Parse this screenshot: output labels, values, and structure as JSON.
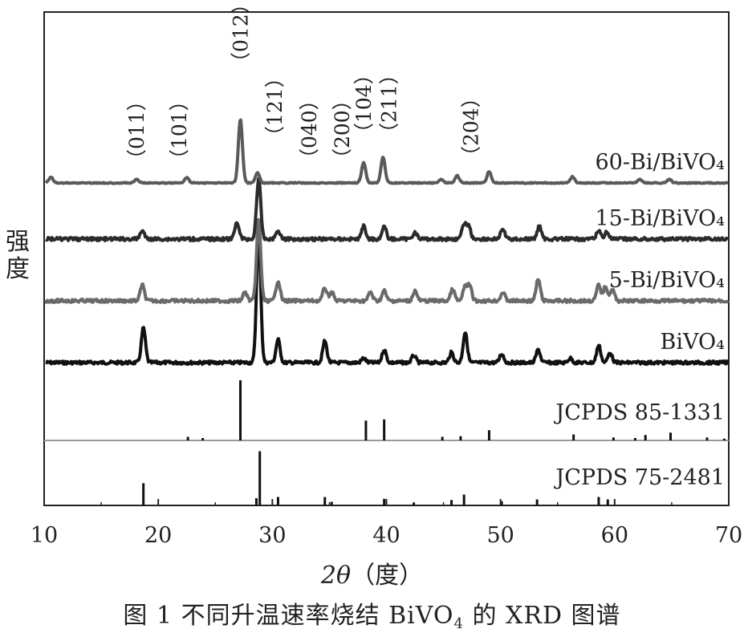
{
  "chart_data": {
    "type": "line",
    "xlabel_symbol": "2θ",
    "xlabel_unit": "（度）",
    "ylabel": "强度",
    "xlim": [
      10,
      70
    ],
    "xticks": [
      10,
      20,
      30,
      40,
      50,
      60,
      70
    ],
    "series": [
      {
        "name": "60-Bi/BiVO₄",
        "color": "#5a5a5a",
        "baseline": 1.0,
        "peaks": [
          [
            10.6,
            0.2
          ],
          [
            18.1,
            0.12
          ],
          [
            22.5,
            0.18
          ],
          [
            27.2,
            2.2
          ],
          [
            28.7,
            0.35
          ],
          [
            38.0,
            0.7
          ],
          [
            39.7,
            0.9
          ],
          [
            44.8,
            0.12
          ],
          [
            46.2,
            0.25
          ],
          [
            49.0,
            0.4
          ],
          [
            56.3,
            0.22
          ],
          [
            62.2,
            0.12
          ],
          [
            64.8,
            0.12
          ]
        ]
      },
      {
        "name": "15-Bi/BiVO₄",
        "color": "#2b2b2b",
        "baseline": 1.0,
        "peaks": [
          [
            18.6,
            0.3
          ],
          [
            26.9,
            0.6
          ],
          [
            28.8,
            2.1
          ],
          [
            30.5,
            0.3
          ],
          [
            38.0,
            0.45
          ],
          [
            39.8,
            0.45
          ],
          [
            42.5,
            0.25
          ],
          [
            46.8,
            0.5
          ],
          [
            47.2,
            0.45
          ],
          [
            50.2,
            0.35
          ],
          [
            53.4,
            0.45
          ],
          [
            58.6,
            0.3
          ],
          [
            59.3,
            0.25
          ]
        ]
      },
      {
        "name": "5-Bi/BiVO₄",
        "color": "#6a6a6a",
        "baseline": 1.0,
        "peaks": [
          [
            18.6,
            0.55
          ],
          [
            27.6,
            0.3
          ],
          [
            28.8,
            2.8
          ],
          [
            30.5,
            0.7
          ],
          [
            34.6,
            0.45
          ],
          [
            35.2,
            0.3
          ],
          [
            38.6,
            0.3
          ],
          [
            39.8,
            0.35
          ],
          [
            42.5,
            0.35
          ],
          [
            45.8,
            0.4
          ],
          [
            46.9,
            0.5
          ],
          [
            47.3,
            0.5
          ],
          [
            50.2,
            0.3
          ],
          [
            53.3,
            0.75
          ],
          [
            58.6,
            0.55
          ],
          [
            59.2,
            0.5
          ],
          [
            59.8,
            0.4
          ]
        ]
      },
      {
        "name": "BiVO₄",
        "color": "#111111",
        "baseline": 1.0,
        "peaks": [
          [
            18.7,
            1.2
          ],
          [
            28.8,
            4.6
          ],
          [
            30.5,
            0.8
          ],
          [
            34.6,
            0.75
          ],
          [
            38.0,
            0.15
          ],
          [
            39.8,
            0.45
          ],
          [
            42.4,
            0.25
          ],
          [
            45.7,
            0.35
          ],
          [
            46.9,
            1.05
          ],
          [
            50.1,
            0.3
          ],
          [
            53.3,
            0.45
          ],
          [
            56.1,
            0.15
          ],
          [
            58.6,
            0.6
          ],
          [
            59.6,
            0.35
          ]
        ]
      }
    ],
    "peak_labels": [
      {
        "text": "（011）",
        "x": 18.1
      },
      {
        "text": "（101）",
        "x": 21.8
      },
      {
        "text": "（012）",
        "x": 27.2
      },
      {
        "text": "（121）",
        "x": 30.2
      },
      {
        "text": "（040）",
        "x": 33.2
      },
      {
        "text": "（200）",
        "x": 36.1
      },
      {
        "text": "（104）",
        "x": 38.0
      },
      {
        "text": "（211）",
        "x": 40.2
      },
      {
        "text": "（204）",
        "x": 47.4
      }
    ],
    "references": [
      {
        "name": "JCPDS 85-1331",
        "lines": [
          [
            22.6,
            0.06
          ],
          [
            23.9,
            0.04
          ],
          [
            27.2,
            1.0
          ],
          [
            38.2,
            0.33
          ],
          [
            39.8,
            0.35
          ],
          [
            44.9,
            0.06
          ],
          [
            46.5,
            0.07
          ],
          [
            49.0,
            0.17
          ],
          [
            56.4,
            0.1
          ],
          [
            59.9,
            0.05
          ],
          [
            61.8,
            0.04
          ],
          [
            62.7,
            0.09
          ],
          [
            64.9,
            0.13
          ],
          [
            68.1,
            0.05
          ],
          [
            69.6,
            0.03
          ]
        ]
      },
      {
        "name": "JCPDS 75-2481",
        "lines": [
          [
            18.7,
            0.37
          ],
          [
            28.6,
            0.12
          ],
          [
            28.9,
            0.9
          ],
          [
            30.5,
            0.14
          ],
          [
            34.6,
            0.14
          ],
          [
            35.2,
            0.06
          ],
          [
            39.8,
            0.11
          ],
          [
            42.4,
            0.05
          ],
          [
            45.7,
            0.09
          ],
          [
            46.8,
            0.18
          ],
          [
            50.1,
            0.07
          ],
          [
            53.2,
            0.1
          ],
          [
            58.6,
            0.14
          ],
          [
            59.4,
            0.1
          ]
        ]
      }
    ]
  },
  "caption": {
    "prefix": "图 1   不同升温速率烧结 BiVO",
    "sub": "4",
    "suffix": " 的 XRD 图谱"
  }
}
